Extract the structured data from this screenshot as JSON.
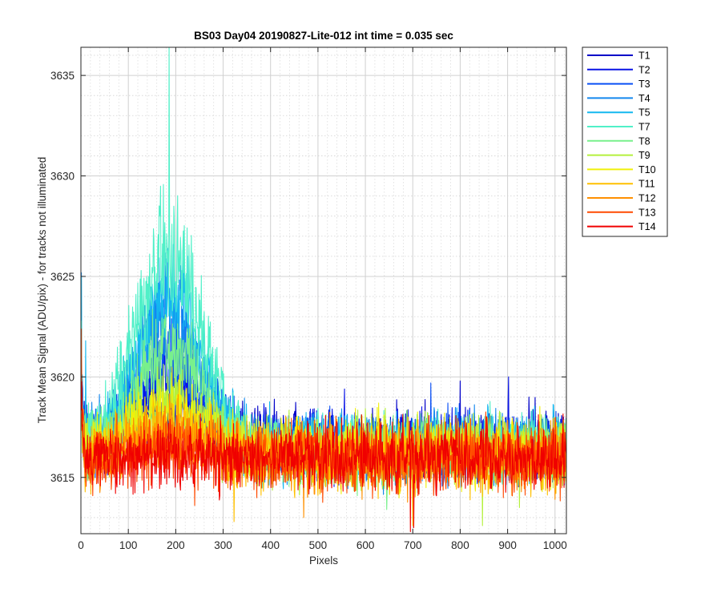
{
  "chart_data": {
    "type": "line",
    "title": "BS03 Day04 20190827-Lite-012 int time = 0.035 sec",
    "xlabel": "Pixels",
    "ylabel": "Track Mean Signal (ADU/pix) - for tracks not illuminated",
    "xlim": [
      0,
      1024
    ],
    "ylim": [
      3612.2,
      3636.4
    ],
    "xticks": [
      0,
      100,
      200,
      300,
      400,
      500,
      600,
      700,
      800,
      900,
      1000
    ],
    "yticks": [
      3615,
      3620,
      3625,
      3630,
      3635
    ],
    "grid": true,
    "minor_grid": true,
    "legend_position": "outside-right-top",
    "x_start": 1,
    "x_end": 1024,
    "series": [
      {
        "name": "T1",
        "color": "#0000c8",
        "baseline": 3616.7,
        "noise": 1.3,
        "hump": 2.0,
        "spikes": [
          [
            800,
            3619.8
          ],
          [
            945,
            3619.0
          ]
        ]
      },
      {
        "name": "T2",
        "color": "#0a14e6",
        "baseline": 3616.6,
        "noise": 1.3,
        "hump": 3.0,
        "spikes": [
          [
            556,
            3619.4
          ],
          [
            902,
            3620.0
          ]
        ]
      },
      {
        "name": "T3",
        "color": "#0a50f5",
        "baseline": 3616.5,
        "noise": 1.3,
        "hump": 4.5,
        "spikes": [
          [
            738,
            3619.7
          ]
        ]
      },
      {
        "name": "T4",
        "color": "#1488ee",
        "baseline": 3616.5,
        "noise": 1.3,
        "hump": 7.0,
        "spikes": [
          [
            1,
            3625.2
          ],
          [
            183,
            3626.4
          ]
        ]
      },
      {
        "name": "T5",
        "color": "#14b8f0",
        "baseline": 3616.5,
        "noise": 1.3,
        "hump": 7.5,
        "spikes": [
          [
            1,
            3625.0
          ],
          [
            10,
            3621.8
          ]
        ]
      },
      {
        "name": "T7",
        "color": "#50f0c8",
        "baseline": 3616.5,
        "noise": 1.3,
        "hump": 10.0,
        "spikes": [
          [
            186,
            3636.4
          ],
          [
            1,
            3622.8
          ]
        ]
      },
      {
        "name": "T8",
        "color": "#78f08c",
        "baseline": 3616.3,
        "noise": 1.3,
        "hump": 5.0,
        "spikes": [
          [
            645,
            3613.4
          ]
        ]
      },
      {
        "name": "T9",
        "color": "#b4f03c",
        "baseline": 3616.3,
        "noise": 1.3,
        "hump": 2.5,
        "spikes": [
          [
            847,
            3612.6
          ],
          [
            925,
            3613.5
          ]
        ]
      },
      {
        "name": "T10",
        "color": "#f0f00a",
        "baseline": 3616.3,
        "noise": 1.3,
        "hump": 2.0,
        "spikes": [
          [
            628,
            3618.7
          ]
        ]
      },
      {
        "name": "T11",
        "color": "#ffc000",
        "baseline": 3616.0,
        "noise": 1.3,
        "hump": 1.5,
        "spikes": [
          [
            323,
            3612.8
          ],
          [
            700,
            3612.6
          ]
        ]
      },
      {
        "name": "T12",
        "color": "#ff9000",
        "baseline": 3616.0,
        "noise": 1.3,
        "hump": 1.0,
        "spikes": [
          [
            470,
            3613.0
          ]
        ]
      },
      {
        "name": "T13",
        "color": "#ff4a00",
        "baseline": 3616.0,
        "noise": 1.3,
        "hump": 0.5,
        "spikes": [
          [
            1,
            3622.4
          ],
          [
            240,
            3613.6
          ]
        ]
      },
      {
        "name": "T14",
        "color": "#f00000",
        "baseline": 3616.0,
        "noise": 1.3,
        "hump": 0.0,
        "spikes": [
          [
            695,
            3612.3
          ],
          [
            702,
            3612.5
          ]
        ]
      }
    ]
  }
}
